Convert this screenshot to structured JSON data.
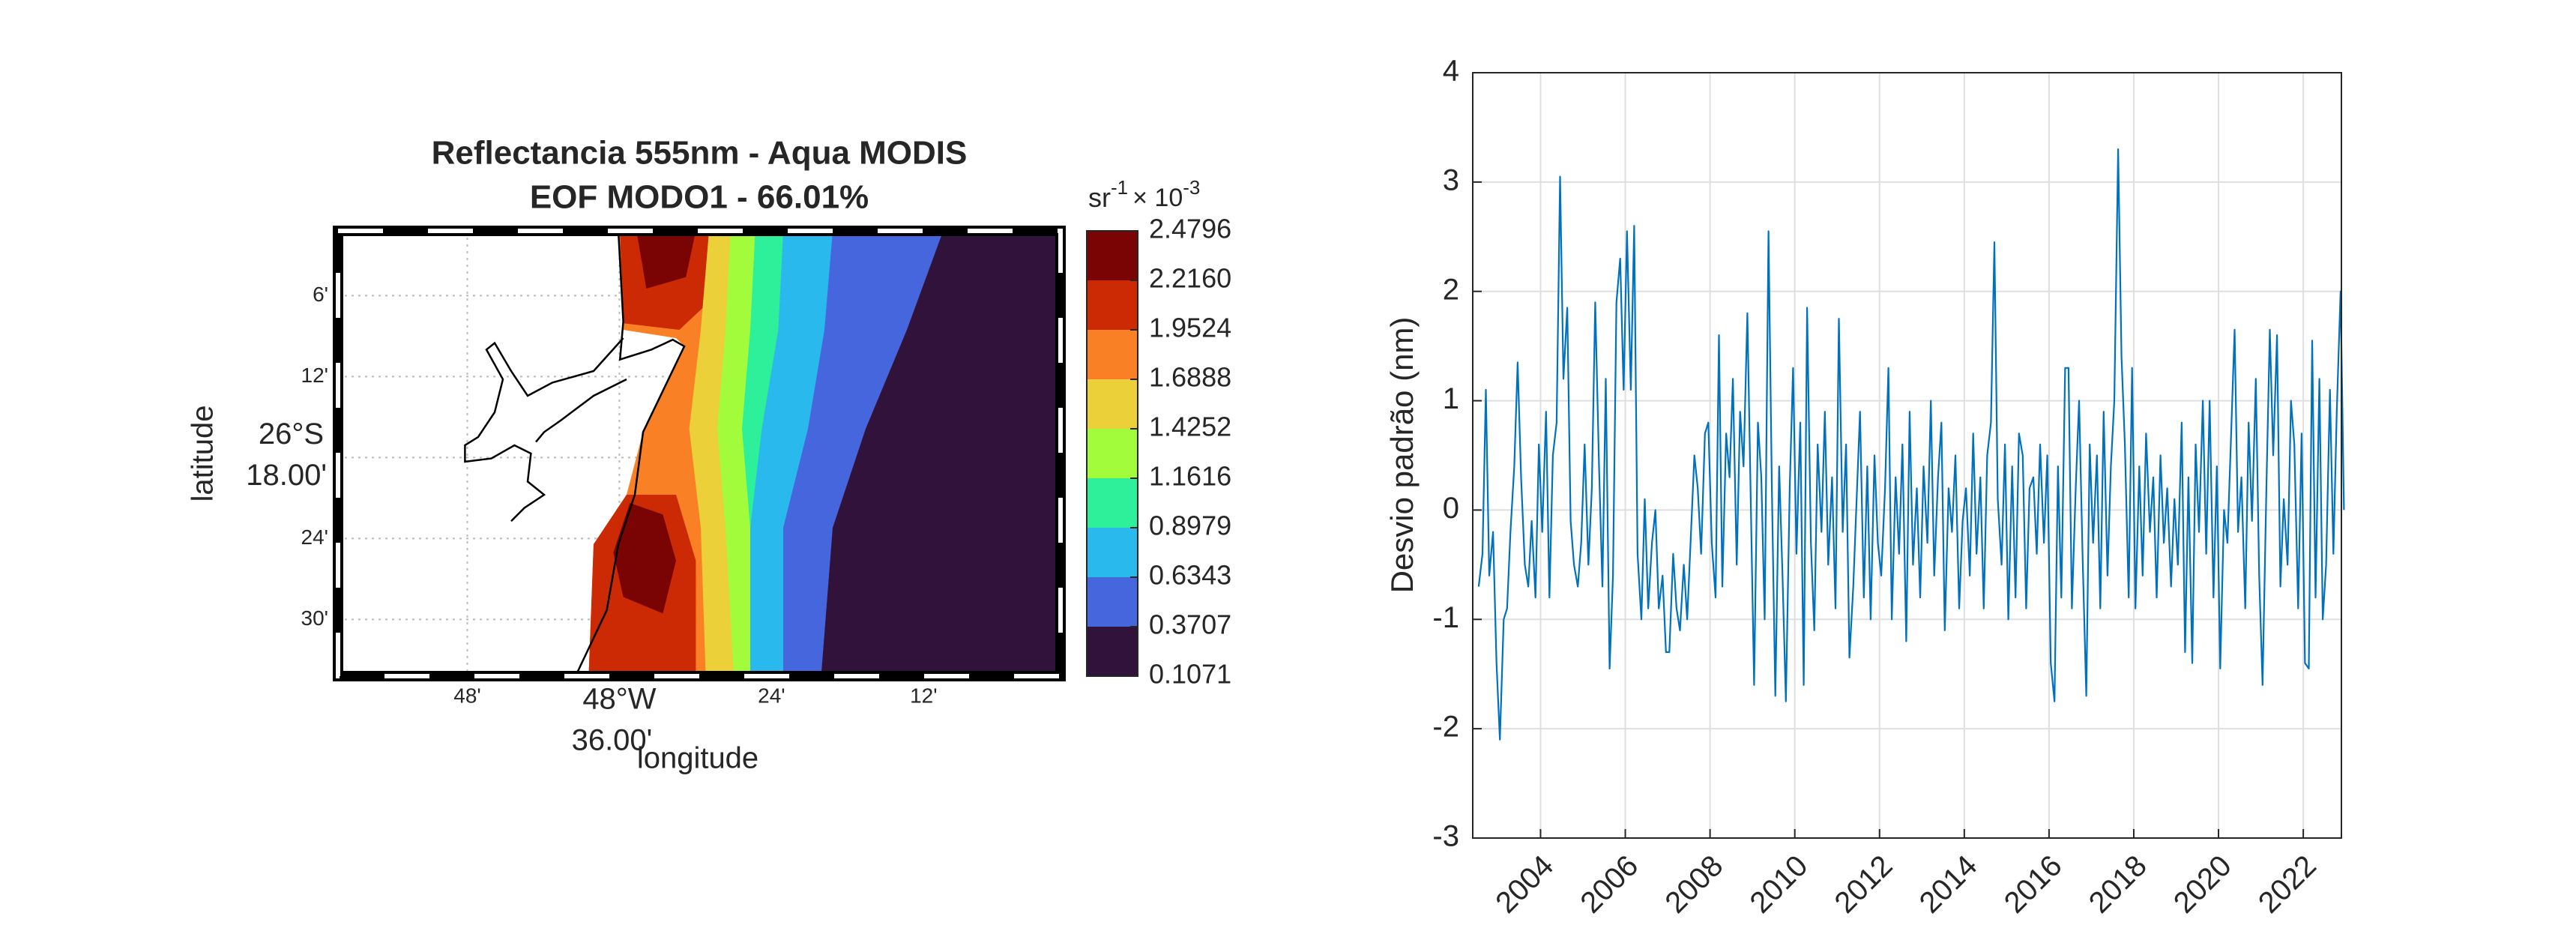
{
  "chart_data": [
    {
      "type": "contour",
      "title": [
        "Reflectancia 555nm - Aqua MODIS",
        "EOF MODO1 - 66.01%"
      ],
      "xlabel": "longitude",
      "ylabel": "latitude",
      "xlim": [
        -48.97,
        -48.02
      ],
      "ylim": [
        -26.57,
        -26.02
      ],
      "xticks": [
        {
          "value": -48.8,
          "label": "48'"
        },
        {
          "value": -48.6,
          "label": [
            "48°W",
            "36.00'"
          ]
        },
        {
          "value": -48.4,
          "label": "24'"
        },
        {
          "value": -48.2,
          "label": "12'"
        }
      ],
      "yticks": [
        {
          "value": -26.1,
          "label": "6'"
        },
        {
          "value": -26.2,
          "label": "12'"
        },
        {
          "value": -26.3,
          "label": [
            "26°S",
            "18.00'"
          ]
        },
        {
          "value": -26.4,
          "label": "24'"
        },
        {
          "value": -26.5,
          "label": "30'"
        }
      ],
      "colorbar": {
        "unit": "sr",
        "unit_exp": "-1",
        "scale": "× 10",
        "scale_exp": "-3",
        "ticks": [
          0.1071,
          0.3707,
          0.6343,
          0.8979,
          1.1616,
          1.4252,
          1.6888,
          1.9524,
          {
            "value": 2.216,
            "label": "2.2160"
          },
          2.4796
        ],
        "colors": [
          "#30123b",
          "#4666dd",
          "#2ab9ed",
          "#2ef09a",
          "#a2fc3c",
          "#ebd03a",
          "#f98024",
          "#cb2a04",
          "#7a0403"
        ]
      }
    },
    {
      "type": "line",
      "ylabel": "Desvio padrão (nm)",
      "xlim": [
        2002.4,
        2022.9
      ],
      "ylim": [
        -3,
        4
      ],
      "xticks": [
        2004,
        2006,
        2008,
        2010,
        2012,
        2014,
        2016,
        2018,
        2020,
        2022
      ],
      "yticks": [
        -3,
        -2,
        -1,
        0,
        1,
        2,
        3,
        4
      ],
      "grid": true,
      "x": [
        2002.54,
        2002.63,
        2002.71,
        2002.79,
        2002.88,
        2002.96,
        2003.04,
        2003.13,
        2003.21,
        2003.29,
        2003.38,
        2003.46,
        2003.54,
        2003.63,
        2003.71,
        2003.79,
        2003.88,
        2003.96,
        2004.04,
        2004.13,
        2004.21,
        2004.29,
        2004.38,
        2004.46,
        2004.54,
        2004.63,
        2004.71,
        2004.79,
        2004.88,
        2004.96,
        2005.04,
        2005.13,
        2005.21,
        2005.29,
        2005.38,
        2005.46,
        2005.54,
        2005.63,
        2005.71,
        2005.79,
        2005.88,
        2005.96,
        2006.04,
        2006.13,
        2006.21,
        2006.29,
        2006.38,
        2006.46,
        2006.54,
        2006.63,
        2006.71,
        2006.79,
        2006.88,
        2006.96,
        2007.04,
        2007.13,
        2007.21,
        2007.29,
        2007.38,
        2007.46,
        2007.54,
        2007.63,
        2007.71,
        2007.79,
        2007.88,
        2007.96,
        2008.04,
        2008.13,
        2008.21,
        2008.29,
        2008.38,
        2008.46,
        2008.54,
        2008.63,
        2008.71,
        2008.79,
        2008.88,
        2008.96,
        2009.04,
        2009.13,
        2009.21,
        2009.29,
        2009.38,
        2009.46,
        2009.54,
        2009.63,
        2009.71,
        2009.79,
        2009.88,
        2009.96,
        2010.04,
        2010.13,
        2010.21,
        2010.29,
        2010.38,
        2010.46,
        2010.54,
        2010.63,
        2010.71,
        2010.79,
        2010.88,
        2010.96,
        2011.04,
        2011.13,
        2011.21,
        2011.29,
        2011.38,
        2011.46,
        2011.54,
        2011.63,
        2011.71,
        2011.79,
        2011.88,
        2011.96,
        2012.04,
        2012.13,
        2012.21,
        2012.29,
        2012.38,
        2012.46,
        2012.54,
        2012.63,
        2012.71,
        2012.79,
        2012.88,
        2012.96,
        2013.04,
        2013.13,
        2013.21,
        2013.29,
        2013.38,
        2013.46,
        2013.54,
        2013.63,
        2013.71,
        2013.79,
        2013.88,
        2013.96,
        2014.04,
        2014.13,
        2014.21,
        2014.29,
        2014.38,
        2014.46,
        2014.54,
        2014.63,
        2014.71,
        2014.79,
        2014.88,
        2014.96,
        2015.04,
        2015.13,
        2015.21,
        2015.29,
        2015.38,
        2015.46,
        2015.54,
        2015.63,
        2015.71,
        2015.79,
        2015.88,
        2015.96,
        2016.04,
        2016.13,
        2016.21,
        2016.29,
        2016.38,
        2016.46,
        2016.54,
        2016.63,
        2016.71,
        2016.79,
        2016.88,
        2016.96,
        2017.04,
        2017.13,
        2017.21,
        2017.29,
        2017.38,
        2017.46,
        2017.54,
        2017.63,
        2017.71,
        2017.79,
        2017.88,
        2017.96,
        2018.04,
        2018.13,
        2018.21,
        2018.29,
        2018.38,
        2018.46,
        2018.54,
        2018.63,
        2018.71,
        2018.79,
        2018.88,
        2018.96,
        2019.04,
        2019.13,
        2019.21,
        2019.29,
        2019.38,
        2019.46,
        2019.54,
        2019.63,
        2019.71,
        2019.79,
        2019.88,
        2019.96,
        2020.04,
        2020.13,
        2020.21,
        2020.29,
        2020.38,
        2020.46,
        2020.54,
        2020.63,
        2020.71,
        2020.79,
        2020.88,
        2020.96,
        2021.04,
        2021.13,
        2021.21,
        2021.29,
        2021.38,
        2021.46,
        2021.54,
        2021.63,
        2021.71,
        2021.79,
        2021.88,
        2021.96,
        2022.04,
        2022.13,
        2022.21,
        2022.29,
        2022.38,
        2022.46,
        2022.54,
        2022.63,
        2022.71,
        2022.79,
        2022.88,
        2022.96
      ],
      "series": [
        {
          "color": "#0072bd",
          "values": [
            -0.7,
            -0.4,
            1.1,
            -0.6,
            -0.2,
            -1.4,
            -2.1,
            -1.0,
            -0.9,
            -0.2,
            0.4,
            1.35,
            0.3,
            -0.5,
            -0.7,
            -0.1,
            -0.8,
            0.6,
            -0.2,
            0.9,
            -0.8,
            0.5,
            0.8,
            3.05,
            1.2,
            1.85,
            -0.1,
            -0.5,
            -0.7,
            -0.3,
            0.6,
            -0.5,
            0.2,
            1.9,
            0.4,
            -0.7,
            1.2,
            -1.45,
            -0.6,
            1.9,
            2.3,
            1.1,
            2.55,
            1.1,
            2.6,
            -0.4,
            -1.0,
            0.1,
            -0.9,
            -0.3,
            0.0,
            -0.9,
            -0.6,
            -1.3,
            -1.3,
            -0.4,
            -0.9,
            -1.1,
            -0.5,
            -1.0,
            -0.3,
            0.5,
            0.2,
            -0.4,
            0.7,
            0.8,
            -0.3,
            -0.8,
            1.6,
            -0.7,
            0.7,
            0.3,
            1.2,
            -0.5,
            0.9,
            0.4,
            1.8,
            0.1,
            -1.6,
            0.8,
            0.3,
            -1.0,
            2.55,
            0.2,
            -1.7,
            0.4,
            -0.6,
            -1.75,
            0.2,
            1.3,
            -0.4,
            0.8,
            -1.6,
            1.85,
            -0.3,
            -1.1,
            0.6,
            -0.2,
            0.9,
            -0.5,
            0.3,
            -0.9,
            1.75,
            -0.2,
            0.6,
            -1.35,
            -0.7,
            0.1,
            0.9,
            -0.8,
            0.4,
            -1.0,
            0.5,
            -0.3,
            -0.6,
            0.2,
            1.3,
            -1.0,
            0.3,
            -0.4,
            0.6,
            -1.2,
            0.9,
            -0.5,
            0.2,
            -0.8,
            0.4,
            -0.3,
            1.0,
            -0.6,
            0.3,
            0.8,
            -1.1,
            0.2,
            -0.2,
            0.5,
            -0.9,
            -0.1,
            0.2,
            -0.6,
            0.7,
            -0.4,
            0.3,
            -0.9,
            0.5,
            0.8,
            2.45,
            0.1,
            -0.5,
            0.6,
            -1.0,
            0.4,
            -0.8,
            0.7,
            0.5,
            -0.9,
            0.2,
            0.3,
            -0.4,
            0.6,
            -0.3,
            0.5,
            -1.4,
            -1.75,
            0.4,
            -0.8,
            1.3,
            1.3,
            -0.9,
            0.2,
            1.0,
            -0.4,
            -1.7,
            0.6,
            -0.3,
            0.5,
            -0.9,
            0.9,
            -0.6,
            0.4,
            1.0,
            3.3,
            1.4,
            0.6,
            -0.8,
            1.3,
            -0.9,
            0.4,
            -0.6,
            0.7,
            -0.2,
            0.3,
            -0.8,
            0.5,
            -0.3,
            0.2,
            -0.7,
            0.1,
            -0.5,
            0.8,
            -1.3,
            0.3,
            -1.4,
            0.6,
            -0.2,
            1.0,
            -0.4,
            1.0,
            -0.8,
            0.4,
            -1.45,
            0.0,
            -0.3,
            0.6,
            1.65,
            -0.2,
            0.3,
            -0.9,
            0.8,
            -0.1,
            1.2,
            -0.6,
            -1.6,
            0.2,
            1.65,
            0.5,
            1.6,
            -0.7,
            0.1,
            -0.5,
            1.0,
            0.6,
            -0.9,
            0.7,
            -1.4,
            -1.45,
            1.55,
            -0.8,
            1.2,
            -1.0,
            -0.5,
            1.1,
            -0.4,
            0.9,
            2.0,
            0.0
          ]
        }
      ]
    }
  ]
}
